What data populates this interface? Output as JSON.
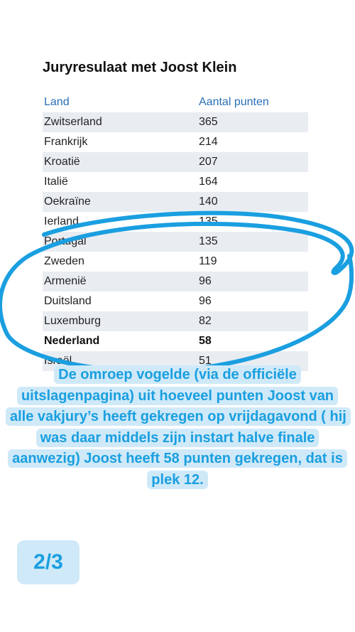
{
  "table": {
    "title": "Juryresulaat met Joost Klein",
    "headers": [
      "Land",
      "Aantal punten"
    ],
    "rows": [
      {
        "land": "Zwitserland",
        "punten": "365"
      },
      {
        "land": "Frankrijk",
        "punten": "214"
      },
      {
        "land": "Kroatië",
        "punten": "207"
      },
      {
        "land": "Italië",
        "punten": "164"
      },
      {
        "land": "Oekraïne",
        "punten": "140"
      },
      {
        "land": "Ierland",
        "punten": "135"
      },
      {
        "land": "Portugal",
        "punten": "135"
      },
      {
        "land": "Zweden",
        "punten": "119"
      },
      {
        "land": "Armenië",
        "punten": "96"
      },
      {
        "land": "Duitsland",
        "punten": "96"
      },
      {
        "land": "Luxemburg",
        "punten": "82"
      },
      {
        "land": "Nederland",
        "punten": "58",
        "highlight": true
      },
      {
        "land": "Israël",
        "punten": "51"
      }
    ]
  },
  "caption": "De omroep vogelde (via de officiële uitslagenpagina) uit hoeveel punten Joost van alle vakjury’s heeft gekregen op vrijdagavond ( hij was daar middels zijn instart halve finale aanwezig) Joost heeft 58 punten gekregen, dat is plek 12.",
  "pager": "2/3",
  "colors": {
    "accent": "#1a9fe0",
    "caption_bg": "#cfe9f8",
    "header_text": "#2a6fb5",
    "row_stripe": "#e9edf2"
  }
}
